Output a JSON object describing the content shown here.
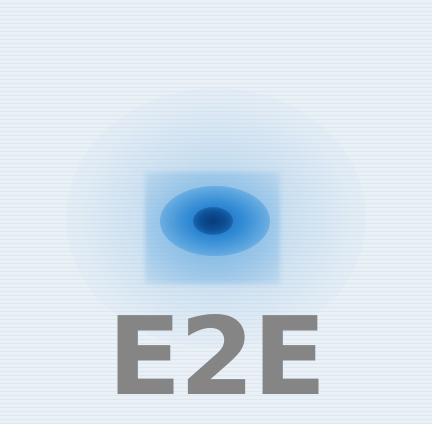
{
  "logo": {
    "text": "E2E",
    "text_color": "#858585"
  },
  "colors": {
    "background": "#e9f0f6",
    "spot_core": "#083c78",
    "spot_glow": "#6fb0e1"
  }
}
